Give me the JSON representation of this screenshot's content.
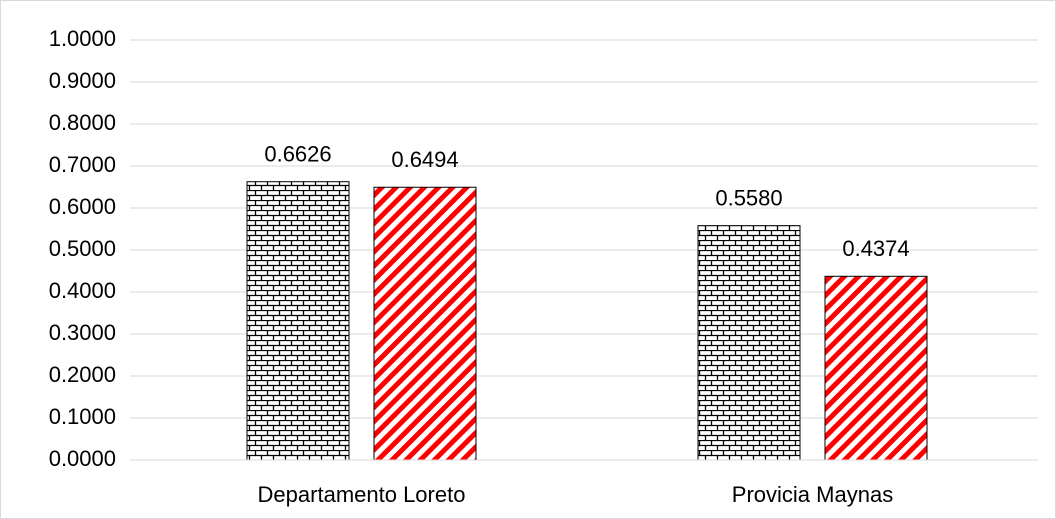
{
  "chart_data": {
    "type": "bar",
    "categories": [
      "Departamento Loreto",
      "Provicia Maynas"
    ],
    "series": [
      {
        "color": "#000000",
        "pattern": "brick",
        "values": [
          0.6626,
          0.558
        ],
        "value_labels": [
          "0.6626",
          "0.5580"
        ]
      },
      {
        "color": "#ff0000",
        "pattern": "diagonal",
        "values": [
          0.6494,
          0.4374
        ],
        "value_labels": [
          "0.6494",
          "0.4374"
        ]
      }
    ],
    "ylim": [
      0,
      1
    ],
    "yticks": [
      {
        "value": 0,
        "label": "0.0000"
      },
      {
        "value": 0.1,
        "label": "0.1000"
      },
      {
        "value": 0.2,
        "label": "0.2000"
      },
      {
        "value": 0.3,
        "label": "0.3000"
      },
      {
        "value": 0.4,
        "label": "0.4000"
      },
      {
        "value": 0.5,
        "label": "0.5000"
      },
      {
        "value": 0.6,
        "label": "0.6000"
      },
      {
        "value": 0.7,
        "label": "0.7000"
      },
      {
        "value": 0.8,
        "label": "0.8000"
      },
      {
        "value": 0.9,
        "label": "0.9000"
      },
      {
        "value": 1,
        "label": "1.0000"
      }
    ],
    "grid": true
  }
}
